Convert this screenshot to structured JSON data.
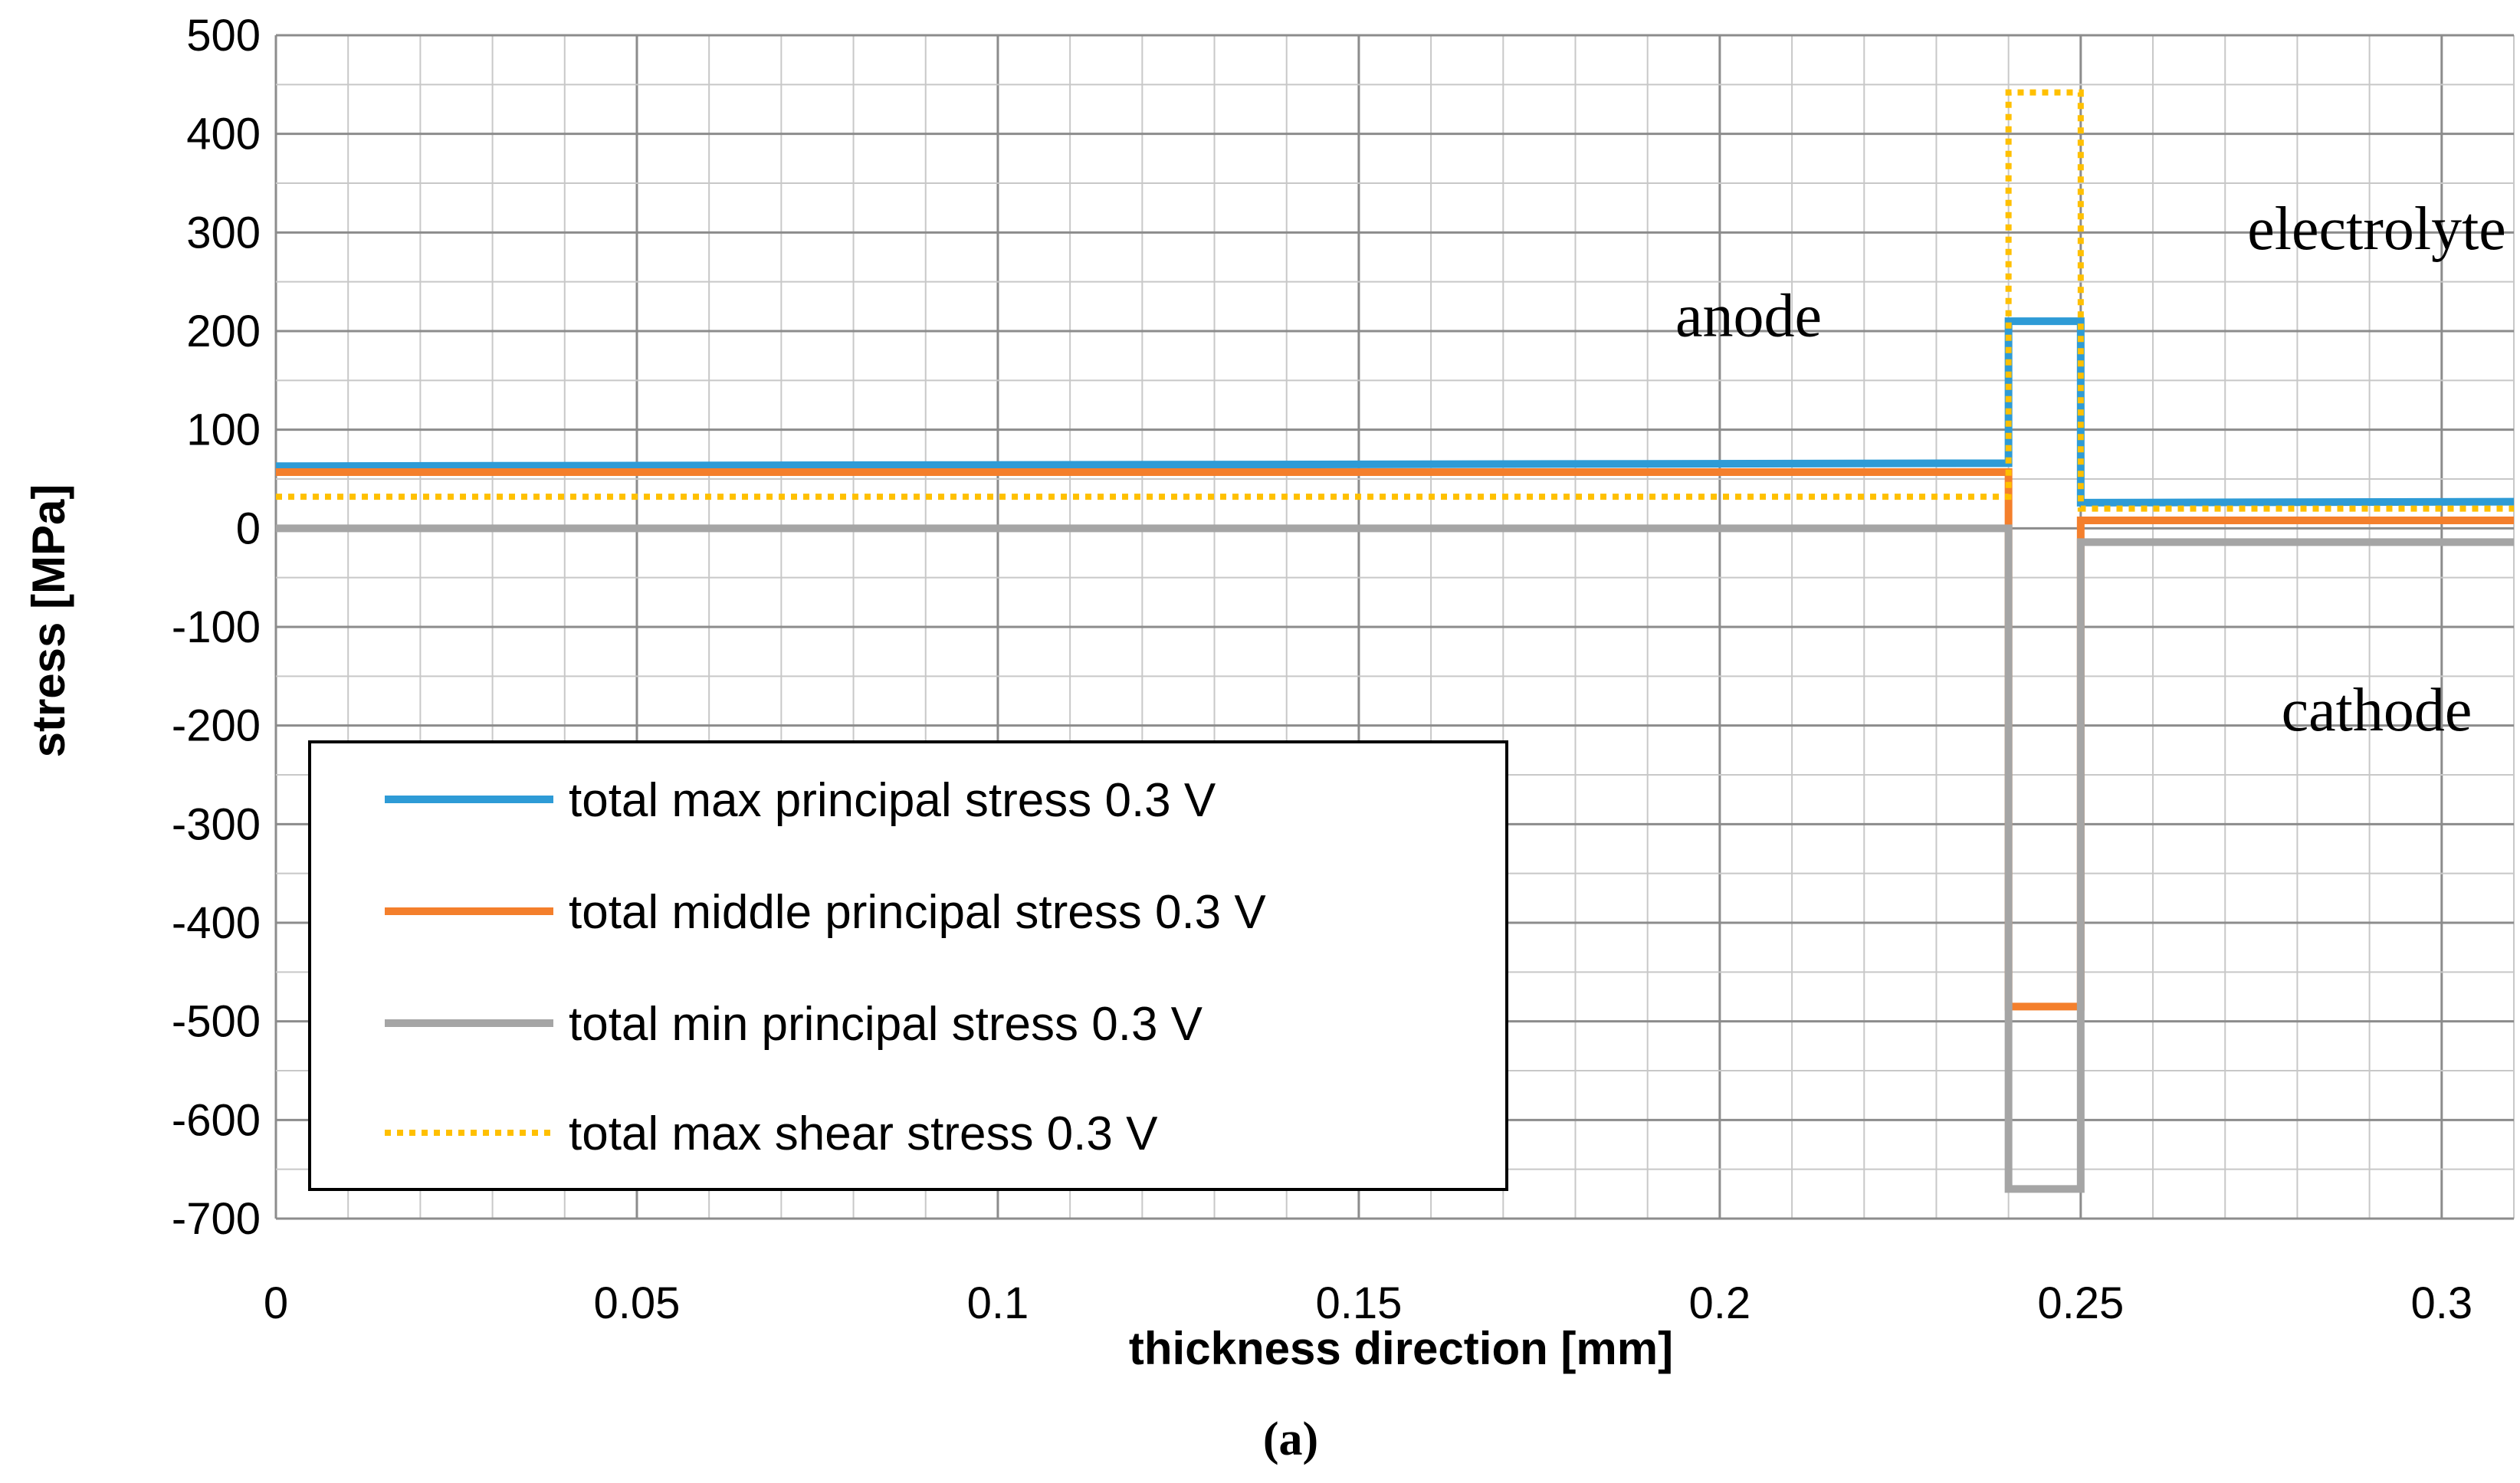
{
  "chart_data": {
    "type": "line",
    "title": "",
    "xlabel": "thickness direction [mm]",
    "ylabel": "stress [MPa]",
    "caption": "(a)",
    "xlim": [
      0,
      0.31
    ],
    "ylim": [
      -700,
      500
    ],
    "x_ticks": [
      0,
      0.05,
      0.1,
      0.15,
      0.2,
      0.25,
      0.3
    ],
    "x_tick_labels": [
      "0",
      "0.05",
      "0.1",
      "0.15",
      "0.2",
      "0.25",
      "0.3"
    ],
    "y_ticks": [
      500,
      400,
      300,
      200,
      100,
      0,
      -100,
      -200,
      -300,
      -400,
      -500,
      -600,
      -700
    ],
    "y_tick_labels": [
      "500",
      "400",
      "300",
      "200",
      "100",
      "0",
      "-100",
      "-200",
      "-300",
      "-400",
      "-500",
      "-600",
      "-700"
    ],
    "grid": true,
    "annotations": [
      {
        "text": "anode",
        "x": 0.204,
        "y": 195
      },
      {
        "text": "electrolyte",
        "x": 0.291,
        "y": 283
      },
      {
        "text": "cathode",
        "x": 0.291,
        "y": -205
      }
    ],
    "series": [
      {
        "name": "total max principal stress 0.3 V",
        "color": "#2e9bd6",
        "style": "solid",
        "x": [
          0,
          0.24,
          0.24,
          0.25,
          0.25,
          0.31
        ],
        "y": [
          63,
          66,
          210,
          210,
          26,
          27
        ]
      },
      {
        "name": "total middle principal stress 0.3 V",
        "color": "#f47f2c",
        "style": "solid",
        "x": [
          0,
          0.24,
          0.24,
          0.25,
          0.25,
          0.31
        ],
        "y": [
          57,
          57,
          -485,
          -485,
          8,
          8
        ]
      },
      {
        "name": "total min principal stress 0.3 V",
        "color": "#a5a5a5",
        "style": "solid",
        "x": [
          0,
          0.24,
          0.24,
          0.25,
          0.25,
          0.31
        ],
        "y": [
          0,
          0,
          -670,
          -670,
          -14,
          -14
        ]
      },
      {
        "name": "total max shear stress 0.3 V",
        "color": "#ffc000",
        "style": "dotted",
        "x": [
          0,
          0.24,
          0.24,
          0.25,
          0.25,
          0.31
        ],
        "y": [
          32,
          32,
          442,
          442,
          20,
          20
        ]
      }
    ],
    "legend_position": "lower-left"
  }
}
